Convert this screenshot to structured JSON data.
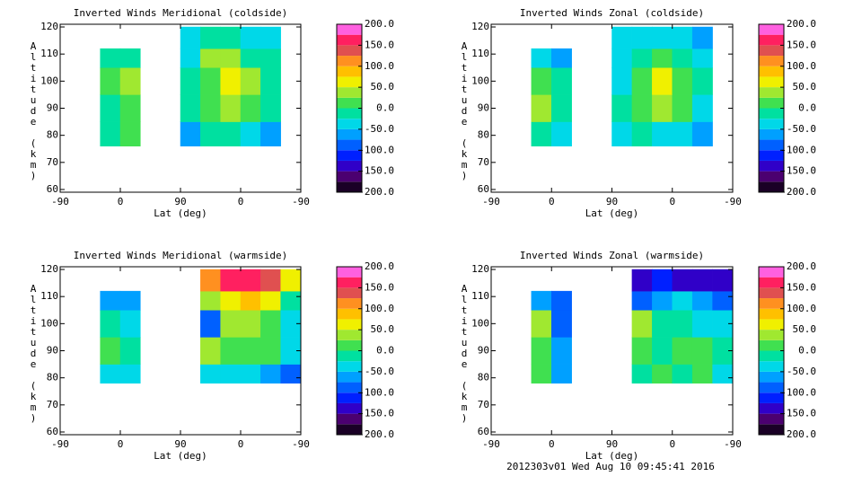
{
  "chart_data": [
    {
      "type": "contour",
      "title": "Inverted Winds Meridional (coldside)",
      "xlabel": "Lat (deg)",
      "ylabel": "Altitude (km)",
      "xlim": [
        0,
        360
      ],
      "xticks": [
        {
          "value": 0,
          "label": "-90"
        },
        {
          "value": 90,
          "label": "0"
        },
        {
          "value": 180,
          "label": "90"
        },
        {
          "value": 270,
          "label": "0"
        },
        {
          "value": 360,
          "label": "-90"
        }
      ],
      "ylim": [
        59,
        121
      ],
      "yticks": [
        60,
        70,
        80,
        90,
        100,
        110,
        120
      ],
      "x_edges": [
        0,
        30,
        60,
        90,
        120,
        150,
        180,
        210,
        240,
        270,
        300,
        330,
        360
      ],
      "y_edges": [
        76,
        85,
        95,
        105,
        112,
        120
      ],
      "z": [
        [
          null,
          null,
          -20,
          0,
          null,
          null,
          -60,
          -20,
          -10,
          -30,
          -60,
          null
        ],
        [
          null,
          null,
          -10,
          10,
          null,
          null,
          -10,
          20,
          40,
          20,
          -20,
          null
        ],
        [
          null,
          null,
          20,
          40,
          null,
          null,
          -20,
          10,
          60,
          30,
          -10,
          null
        ],
        [
          null,
          null,
          -20,
          -10,
          null,
          null,
          -30,
          30,
          40,
          -10,
          -20,
          null
        ],
        [
          null,
          null,
          null,
          null,
          null,
          null,
          -40,
          -20,
          -10,
          -30,
          -40,
          null
        ]
      ],
      "clim": [
        -200,
        200
      ],
      "cticks": [
        {
          "value": 200,
          "label": "200.0"
        },
        {
          "value": 150,
          "label": "150.0"
        },
        {
          "value": 100,
          "label": "100.0"
        },
        {
          "value": 50,
          "label": "50.0"
        },
        {
          "value": 0,
          "label": "0.0"
        },
        {
          "value": -50,
          "label": "-50.0"
        },
        {
          "value": -100,
          "label": "-100.0"
        },
        {
          "value": -150,
          "label": "-150.0"
        },
        {
          "value": -200,
          "label": "-200.0"
        }
      ],
      "colors": [
        "#1a0026",
        "#4b0070",
        "#3000c8",
        "#0020ff",
        "#0060ff",
        "#00a0ff",
        "#00d8e8",
        "#00e0a0",
        "#40e050",
        "#a0e830",
        "#f0f000",
        "#ffc000",
        "#ff9020",
        "#e05050",
        "#ff2060",
        "#ff60e0"
      ]
    },
    {
      "type": "contour",
      "title": "Inverted Winds Zonal (coldside)",
      "xlabel": "Lat (deg)",
      "ylabel": "Altitude (km)",
      "xlim": [
        0,
        360
      ],
      "xticks": [
        {
          "value": 0,
          "label": "-90"
        },
        {
          "value": 90,
          "label": "0"
        },
        {
          "value": 180,
          "label": "90"
        },
        {
          "value": 270,
          "label": "0"
        },
        {
          "value": 360,
          "label": "-90"
        }
      ],
      "ylim": [
        59,
        121
      ],
      "yticks": [
        60,
        70,
        80,
        90,
        100,
        110,
        120
      ],
      "x_edges": [
        0,
        30,
        60,
        90,
        120,
        150,
        180,
        210,
        240,
        270,
        300,
        330,
        360
      ],
      "y_edges": [
        76,
        85,
        95,
        105,
        112,
        120
      ],
      "z": [
        [
          null,
          null,
          -20,
          -30,
          null,
          null,
          -40,
          -20,
          -30,
          -40,
          -60,
          null
        ],
        [
          null,
          null,
          30,
          -10,
          null,
          null,
          -20,
          10,
          30,
          0,
          -30,
          null
        ],
        [
          null,
          null,
          20,
          -20,
          null,
          null,
          -30,
          20,
          60,
          20,
          -20,
          null
        ],
        [
          null,
          null,
          -40,
          -60,
          null,
          null,
          -30,
          -10,
          0,
          -20,
          -30,
          null
        ],
        [
          null,
          null,
          null,
          null,
          null,
          null,
          -40,
          -30,
          -40,
          -50,
          -60,
          null
        ]
      ],
      "clim": [
        -200,
        200
      ],
      "cticks": [
        {
          "value": 200,
          "label": "200.0"
        },
        {
          "value": 150,
          "label": "150.0"
        },
        {
          "value": 100,
          "label": "100.0"
        },
        {
          "value": 50,
          "label": "50.0"
        },
        {
          "value": 0,
          "label": "0.0"
        },
        {
          "value": -50,
          "label": "-50.0"
        },
        {
          "value": -100,
          "label": "-100.0"
        },
        {
          "value": -150,
          "label": "-150.0"
        },
        {
          "value": -200,
          "label": "-200.0"
        }
      ],
      "colors": [
        "#1a0026",
        "#4b0070",
        "#3000c8",
        "#0020ff",
        "#0060ff",
        "#00a0ff",
        "#00d8e8",
        "#00e0a0",
        "#40e050",
        "#a0e830",
        "#f0f000",
        "#ffc000",
        "#ff9020",
        "#e05050",
        "#ff2060",
        "#ff60e0"
      ]
    },
    {
      "type": "contour",
      "title": "Inverted Winds Meridional (warmside)",
      "xlabel": "Lat (deg)",
      "ylabel": "Altitude (km)",
      "xlim": [
        0,
        360
      ],
      "xticks": [
        {
          "value": 0,
          "label": "-90"
        },
        {
          "value": 90,
          "label": "0"
        },
        {
          "value": 180,
          "label": "90"
        },
        {
          "value": 270,
          "label": "0"
        },
        {
          "value": 360,
          "label": "-90"
        }
      ],
      "ylim": [
        59,
        121
      ],
      "yticks": [
        60,
        70,
        80,
        90,
        100,
        110,
        120
      ],
      "x_edges": [
        0,
        30,
        60,
        90,
        120,
        150,
        180,
        210,
        240,
        270,
        300,
        330,
        360
      ],
      "y_edges": [
        78,
        85,
        95,
        105,
        112,
        120
      ],
      "z": [
        [
          null,
          null,
          -50,
          -30,
          null,
          null,
          null,
          -40,
          -30,
          -30,
          -60,
          -80
        ],
        [
          null,
          null,
          0,
          -20,
          null,
          null,
          null,
          30,
          20,
          10,
          0,
          -40
        ],
        [
          null,
          null,
          -20,
          -30,
          null,
          null,
          null,
          -100,
          40,
          30,
          10,
          -30
        ],
        [
          null,
          null,
          -60,
          -70,
          null,
          null,
          null,
          40,
          60,
          80,
          60,
          -20
        ],
        [
          null,
          null,
          null,
          null,
          null,
          null,
          null,
          120,
          160,
          170,
          140,
          60
        ]
      ],
      "clim": [
        -200,
        200
      ],
      "cticks": [
        {
          "value": 200,
          "label": "200.0"
        },
        {
          "value": 150,
          "label": "150.0"
        },
        {
          "value": 100,
          "label": "100.0"
        },
        {
          "value": 50,
          "label": "50.0"
        },
        {
          "value": 0,
          "label": "0.0"
        },
        {
          "value": -50,
          "label": "-50.0"
        },
        {
          "value": -100,
          "label": "-100.0"
        },
        {
          "value": -150,
          "label": "-150.0"
        },
        {
          "value": -200,
          "label": "-200.0"
        }
      ],
      "colors": [
        "#1a0026",
        "#4b0070",
        "#3000c8",
        "#0020ff",
        "#0060ff",
        "#00a0ff",
        "#00d8e8",
        "#00e0a0",
        "#40e050",
        "#a0e830",
        "#f0f000",
        "#ffc000",
        "#ff9020",
        "#e05050",
        "#ff2060",
        "#ff60e0"
      ]
    },
    {
      "type": "contour",
      "title": "Inverted Winds Zonal (warmside)",
      "xlabel": "Lat (deg)",
      "ylabel": "Altitude (km)",
      "xlim": [
        0,
        360
      ],
      "xticks": [
        {
          "value": 0,
          "label": "-90"
        },
        {
          "value": 90,
          "label": "0"
        },
        {
          "value": 180,
          "label": "90"
        },
        {
          "value": 270,
          "label": "0"
        },
        {
          "value": 360,
          "label": "-90"
        }
      ],
      "ylim": [
        59,
        121
      ],
      "yticks": [
        60,
        70,
        80,
        90,
        100,
        110,
        120
      ],
      "x_edges": [
        0,
        30,
        60,
        90,
        120,
        150,
        180,
        210,
        240,
        270,
        300,
        330,
        360
      ],
      "y_edges": [
        78,
        85,
        95,
        105,
        112,
        120
      ],
      "z": [
        [
          null,
          null,
          20,
          -60,
          null,
          null,
          null,
          -20,
          0,
          -10,
          20,
          -30
        ],
        [
          null,
          null,
          10,
          -70,
          null,
          null,
          null,
          10,
          -10,
          0,
          10,
          -20
        ],
        [
          null,
          null,
          40,
          -80,
          null,
          null,
          null,
          30,
          -20,
          -10,
          -30,
          -40
        ],
        [
          null,
          null,
          -60,
          -80,
          null,
          null,
          null,
          -80,
          -60,
          -50,
          -70,
          -80
        ],
        [
          null,
          null,
          null,
          null,
          null,
          null,
          null,
          -140,
          -120,
          -150,
          -140,
          -150
        ]
      ],
      "clim": [
        -200,
        200
      ],
      "cticks": [
        {
          "value": 200,
          "label": "200.0"
        },
        {
          "value": 150,
          "label": "150.0"
        },
        {
          "value": 100,
          "label": "100.0"
        },
        {
          "value": 50,
          "label": "50.0"
        },
        {
          "value": 0,
          "label": "0.0"
        },
        {
          "value": -50,
          "label": "-50.0"
        },
        {
          "value": -100,
          "label": "-100.0"
        },
        {
          "value": -150,
          "label": "-150.0"
        },
        {
          "value": -200,
          "label": "-200.0"
        }
      ],
      "colors": [
        "#1a0026",
        "#4b0070",
        "#3000c8",
        "#0020ff",
        "#0060ff",
        "#00a0ff",
        "#00d8e8",
        "#00e0a0",
        "#40e050",
        "#a0e830",
        "#f0f000",
        "#ffc000",
        "#ff9020",
        "#e05050",
        "#ff2060",
        "#ff60e0"
      ]
    }
  ],
  "footer": "2012303v01 Wed Aug 10 09:45:41 2016"
}
